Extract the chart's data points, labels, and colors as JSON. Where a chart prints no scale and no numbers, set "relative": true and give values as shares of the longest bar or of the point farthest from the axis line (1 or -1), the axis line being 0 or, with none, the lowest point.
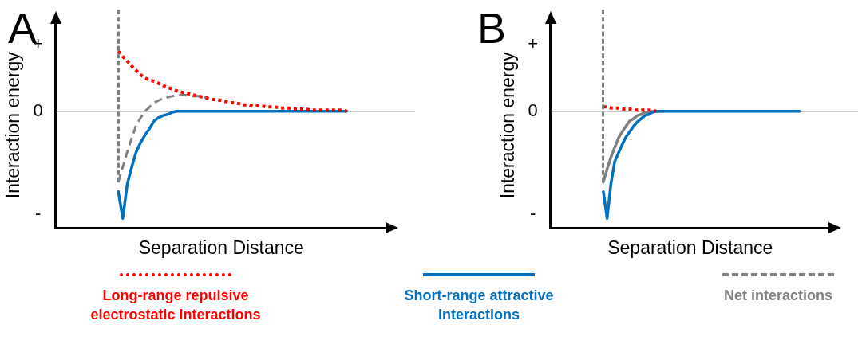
{
  "chart_data": [
    {
      "type": "line",
      "title": "A",
      "xlabel": "Separation Distance",
      "ylabel": "Interaction energy",
      "relative": true,
      "annotations": [
        "+",
        "0",
        "-"
      ],
      "tick_labels": false,
      "grid": false,
      "marker": "none",
      "legend": "bottom",
      "categories": [
        null,
        null,
        null,
        null,
        null,
        null,
        null,
        null,
        null,
        null,
        null,
        null,
        null,
        null,
        null,
        null,
        null,
        null,
        null,
        null,
        null,
        null,
        null,
        null,
        null,
        null,
        null,
        null,
        null,
        null,
        null,
        null,
        null,
        null,
        null,
        null,
        null,
        null,
        null,
        null,
        null,
        null,
        null,
        null,
        null,
        null,
        null,
        null,
        null,
        null,
        null,
        null,
        null,
        null,
        null,
        null,
        null,
        null,
        null,
        null,
        null,
        null,
        null,
        null,
        null,
        null,
        null,
        null,
        null,
        null,
        null,
        null,
        null,
        null,
        null
      ],
      "series": [
        {
          "name": "Net interactions",
          "color": "#808080",
          "line_style": "dashed",
          "values": [
            null,
            null,
            null,
            null,
            null,
            null,
            null,
            null,
            null,
            null,
            null,
            null,
            null,
            null,
            -0.66,
            -0.52,
            -0.38,
            -0.25,
            -0.13,
            -0.06,
            0,
            0.04,
            0.08,
            0.1,
            0.12,
            0.13,
            0.14,
            0.15,
            0.15,
            0.15,
            0.14,
            0.14,
            0.14,
            0.13,
            0.13,
            null,
            null,
            null,
            null,
            null,
            null,
            null,
            null,
            null,
            null,
            null,
            null,
            null,
            null,
            null,
            null,
            null,
            null,
            null,
            null,
            null,
            null,
            null,
            null,
            null,
            null,
            null,
            null,
            null,
            null,
            null,
            null,
            null,
            null,
            null,
            null,
            null,
            null,
            null,
            null
          ]
        },
        {
          "name": "Short-range attractive interactions",
          "color": "#0070c0",
          "line_style": "solid",
          "values": [
            null,
            null,
            null,
            null,
            null,
            null,
            null,
            null,
            null,
            null,
            null,
            null,
            null,
            null,
            -0.75,
            -1,
            -0.68,
            -0.52,
            -0.38,
            -0.29,
            -0.22,
            -0.16,
            -0.09,
            -0.06,
            -0.04,
            -0.03,
            -0.01,
            0,
            0,
            0,
            0,
            0,
            0,
            0,
            0,
            0,
            0,
            0,
            0,
            0,
            0,
            0,
            0,
            0,
            0,
            0,
            0,
            0,
            0,
            0,
            0,
            0,
            0,
            0,
            0,
            0,
            0,
            0,
            0,
            0,
            0,
            0,
            0,
            0,
            0,
            0,
            null,
            null,
            null,
            null,
            null,
            null,
            null,
            null,
            null
          ]
        },
        {
          "name": "Long-range repulsive electrostatic interactions",
          "color": "#ff0000",
          "line_style": "dotted",
          "values": [
            null,
            null,
            null,
            null,
            null,
            null,
            null,
            null,
            null,
            null,
            null,
            null,
            null,
            null,
            0.56,
            0.51,
            0.47,
            0.42,
            0.38,
            0.34,
            0.31,
            0.29,
            0.28,
            0.26,
            0.24,
            0.22,
            0.21,
            0.19,
            0.18,
            0.17,
            0.16,
            0.15,
            0.14,
            0.13,
            0.12,
            0.11,
            0.11,
            0.1,
            0.09,
            0.08,
            0.08,
            0.07,
            0.06,
            0.06,
            0.05,
            0.05,
            0.05,
            0.04,
            0.04,
            0.04,
            0.03,
            0.03,
            0.03,
            0.02,
            0.02,
            0.02,
            0.02,
            0.01,
            0.01,
            0.01,
            0.01,
            0.01,
            0.01,
            0.01,
            0.01,
            0,
            null,
            null,
            null,
            null,
            null,
            null,
            null,
            null,
            null
          ]
        }
      ]
    },
    {
      "type": "line",
      "title": "B",
      "xlabel": "Separation Distance",
      "ylabel": "Interaction energy",
      "relative": true,
      "annotations": [
        "+",
        "0",
        "-"
      ],
      "tick_labels": false,
      "grid": false,
      "marker": "none",
      "categories": [
        null,
        null,
        null,
        null,
        null,
        null,
        null,
        null,
        null,
        null,
        null,
        null,
        null,
        null,
        null,
        null,
        null,
        null,
        null,
        null,
        null,
        null,
        null,
        null,
        null,
        null,
        null,
        null,
        null,
        null,
        null,
        null,
        null,
        null,
        null,
        null,
        null,
        null,
        null,
        null,
        null,
        null,
        null,
        null,
        null,
        null,
        null,
        null,
        null,
        null,
        null,
        null,
        null,
        null,
        null,
        null,
        null,
        null,
        null,
        null,
        null,
        null,
        null,
        null,
        null,
        null,
        null,
        null,
        null,
        null,
        null,
        null,
        null,
        null,
        null
      ],
      "series": [
        {
          "color": "#808080",
          "line_style": "solid",
          "values": [
            null,
            null,
            null,
            null,
            null,
            null,
            null,
            null,
            null,
            null,
            null,
            null,
            null,
            null,
            -0.66,
            -0.54,
            -0.43,
            -0.34,
            -0.25,
            -0.19,
            -0.14,
            -0.09,
            -0.07,
            -0.04,
            -0.03,
            -0.01,
            -0.01,
            0,
            0,
            0,
            0,
            null,
            null,
            null,
            null,
            null,
            null,
            null,
            null,
            null,
            null,
            null,
            null,
            null,
            null,
            null,
            null,
            null,
            null,
            null,
            null,
            null,
            null,
            null,
            null,
            null,
            null,
            null,
            null,
            null,
            null,
            null,
            null,
            null,
            null,
            null,
            null,
            null,
            null,
            null,
            null,
            null,
            null,
            null,
            null
          ]
        },
        {
          "color": "#0070c0",
          "line_style": "solid",
          "values": [
            null,
            null,
            null,
            null,
            null,
            null,
            null,
            null,
            null,
            null,
            null,
            null,
            null,
            null,
            -0.75,
            -1,
            -0.68,
            -0.47,
            -0.39,
            -0.31,
            -0.24,
            -0.19,
            -0.14,
            -0.1,
            -0.07,
            -0.04,
            -0.03,
            -0.01,
            0,
            0,
            0,
            0,
            0,
            0,
            0,
            0,
            0,
            0,
            0,
            0,
            0,
            0,
            0,
            0,
            0,
            0,
            0,
            0,
            0,
            0,
            0,
            0,
            0,
            0,
            0,
            0,
            0,
            0,
            0,
            0,
            0,
            0,
            0,
            0,
            0,
            0,
            0,
            null,
            null,
            null,
            null,
            null,
            null,
            null,
            null
          ]
        },
        {
          "color": "#ff0000",
          "line_style": "dotted",
          "values": [
            null,
            null,
            null,
            null,
            null,
            null,
            null,
            null,
            null,
            null,
            null,
            null,
            null,
            null,
            0.04,
            0.04,
            0.03,
            0.03,
            0.03,
            0.02,
            0.02,
            0.02,
            0.01,
            0.01,
            0.01,
            0.01,
            0.01,
            0.01,
            0,
            null,
            null,
            null,
            null,
            null,
            null,
            null,
            null,
            null,
            null,
            null,
            null,
            null,
            null,
            null,
            null,
            null,
            null,
            null,
            null,
            null,
            null,
            null,
            null,
            null,
            null,
            null,
            null,
            null,
            null,
            null,
            null,
            null,
            null,
            null,
            null,
            null,
            null,
            null,
            null,
            null,
            null,
            null,
            null,
            null,
            null
          ]
        }
      ]
    }
  ]
}
